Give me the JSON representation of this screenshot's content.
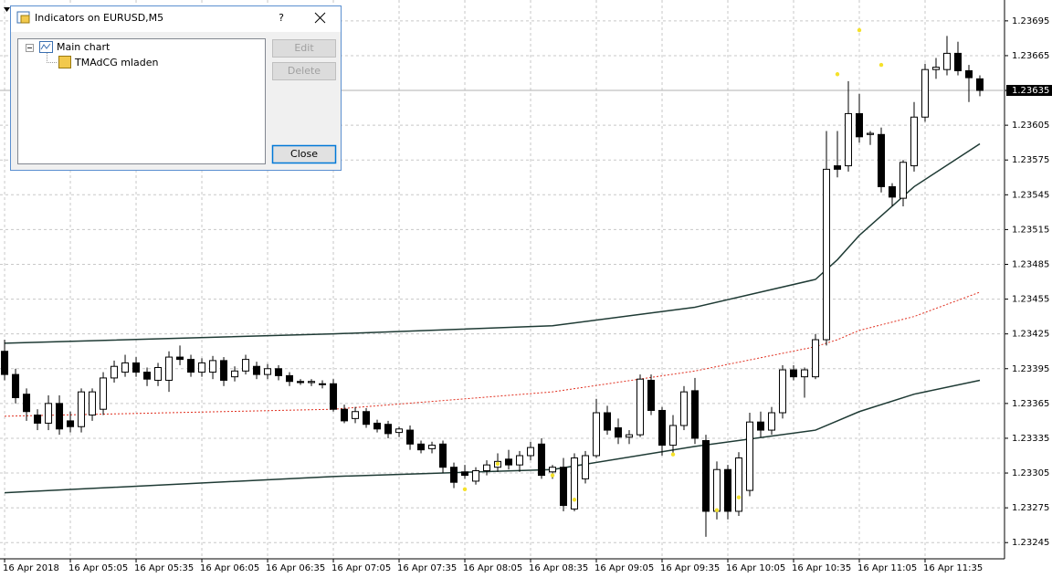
{
  "chart_data": {
    "type": "candlestick",
    "ylim": [
      1.23231,
      1.23713
    ],
    "yticks": [
      1.23695,
      1.23665,
      1.23635,
      1.23605,
      1.23575,
      1.23545,
      1.23515,
      1.23485,
      1.23455,
      1.23425,
      1.23395,
      1.23365,
      1.23335,
      1.23305,
      1.23275,
      1.23245
    ],
    "xlim": [
      -0.42,
      91.25
    ],
    "xticks": [
      {
        "value": 0,
        "label": "16 Apr 2018"
      },
      {
        "value": 6,
        "label": "16 Apr 05:05"
      },
      {
        "value": 12,
        "label": "16 Apr 05:35"
      },
      {
        "value": 18,
        "label": "16 Apr 06:05"
      },
      {
        "value": 24,
        "label": "16 Apr 06:35"
      },
      {
        "value": 30,
        "label": "16 Apr 07:05"
      },
      {
        "value": 36,
        "label": "16 Apr 07:35"
      },
      {
        "value": 42,
        "label": "16 Apr 08:05"
      },
      {
        "value": 48,
        "label": "16 Apr 08:35"
      },
      {
        "value": 54,
        "label": "16 Apr 09:05"
      },
      {
        "value": 60,
        "label": "16 Apr 09:35"
      },
      {
        "value": 66,
        "label": "16 Apr 10:05"
      },
      {
        "value": 72,
        "label": "16 Apr 10:35"
      },
      {
        "value": 78,
        "label": "16 Apr 11:05"
      },
      {
        "value": 84,
        "label": "16 Apr 11:35"
      }
    ],
    "grid": true,
    "current_price": 1.23635,
    "candles": [
      [
        1.2341,
        1.2342,
        1.23385,
        1.2339
      ],
      [
        1.2339,
        1.23395,
        1.23365,
        1.2337
      ],
      [
        1.23373,
        1.23378,
        1.2335,
        1.23358
      ],
      [
        1.23355,
        1.2336,
        1.23342,
        1.23348
      ],
      [
        1.23348,
        1.23372,
        1.23342,
        1.23365
      ],
      [
        1.23365,
        1.23372,
        1.23338,
        1.23343
      ],
      [
        1.2335,
        1.23358,
        1.2334,
        1.23345
      ],
      [
        1.23345,
        1.23378,
        1.2334,
        1.23375
      ],
      [
        1.23355,
        1.23378,
        1.2335,
        1.23375
      ],
      [
        1.2336,
        1.23392,
        1.23355,
        1.23387
      ],
      [
        1.23387,
        1.23402,
        1.23383,
        1.23397
      ],
      [
        1.23392,
        1.23407,
        1.23388,
        1.234
      ],
      [
        1.234,
        1.23405,
        1.23388,
        1.23392
      ],
      [
        1.23392,
        1.23396,
        1.2338,
        1.23386
      ],
      [
        1.23385,
        1.234,
        1.2338,
        1.23396
      ],
      [
        1.23385,
        1.2341,
        1.23375,
        1.23405
      ],
      [
        1.23405,
        1.23415,
        1.23398,
        1.23403
      ],
      [
        1.23403,
        1.23407,
        1.23388,
        1.23392
      ],
      [
        1.23392,
        1.23404,
        1.23388,
        1.234
      ],
      [
        1.23392,
        1.23406,
        1.23386,
        1.23402
      ],
      [
        1.23402,
        1.23405,
        1.2338,
        1.23385
      ],
      [
        1.23388,
        1.23397,
        1.23384,
        1.23393
      ],
      [
        1.23393,
        1.23407,
        1.2339,
        1.23403
      ],
      [
        1.23397,
        1.23401,
        1.23386,
        1.2339
      ],
      [
        1.2339,
        1.23399,
        1.23386,
        1.23395
      ],
      [
        1.23395,
        1.23398,
        1.23385,
        1.23389
      ],
      [
        1.23389,
        1.23392,
        1.2338,
        1.23384
      ],
      [
        1.23384,
        1.23386,
        1.23381,
        1.23383
      ],
      [
        1.23383,
        1.23386,
        1.2338,
        1.23384
      ],
      [
        1.23382,
        1.23385,
        1.23378,
        1.23382
      ],
      [
        1.23382,
        1.23386,
        1.23358,
        1.2336
      ],
      [
        1.2336,
        1.23364,
        1.23348,
        1.2335
      ],
      [
        1.23352,
        1.23362,
        1.23348,
        1.23358
      ],
      [
        1.23358,
        1.23361,
        1.23344,
        1.23347
      ],
      [
        1.23348,
        1.23351,
        1.2334,
        1.23343
      ],
      [
        1.23347,
        1.2335,
        1.23335,
        1.23339
      ],
      [
        1.2334,
        1.23345,
        1.23336,
        1.23343
      ],
      [
        1.23342,
        1.23346,
        1.23325,
        1.2333
      ],
      [
        1.2333,
        1.23333,
        1.23322,
        1.23325
      ],
      [
        1.23326,
        1.23332,
        1.23322,
        1.23329
      ],
      [
        1.2333,
        1.23333,
        1.23305,
        1.2331
      ],
      [
        1.2331,
        1.23314,
        1.23292,
        1.23297
      ],
      [
        1.23306,
        1.23312,
        1.233,
        1.23303
      ],
      [
        1.23298,
        1.2331,
        1.23295,
        1.23307
      ],
      [
        1.23307,
        1.23316,
        1.23303,
        1.23312
      ],
      [
        1.2331,
        1.23322,
        1.23306,
        1.23315
      ],
      [
        1.23317,
        1.23325,
        1.23308,
        1.23312
      ],
      [
        1.23312,
        1.23324,
        1.23306,
        1.2332
      ],
      [
        1.2332,
        1.23332,
        1.23316,
        1.23327
      ],
      [
        1.2333,
        1.23335,
        1.233,
        1.23303
      ],
      [
        1.23306,
        1.23312,
        1.233,
        1.2331
      ],
      [
        1.2331,
        1.23318,
        1.23272,
        1.23277
      ],
      [
        1.23274,
        1.23322,
        1.23272,
        1.23318
      ],
      [
        1.233,
        1.23324,
        1.23296,
        1.2332
      ],
      [
        1.2332,
        1.23369,
        1.23318,
        1.23357
      ],
      [
        1.23357,
        1.23363,
        1.23338,
        1.23342
      ],
      [
        1.23344,
        1.23352,
        1.2333,
        1.23336
      ],
      [
        1.23336,
        1.23342,
        1.2333,
        1.23338
      ],
      [
        1.23338,
        1.2339,
        1.23336,
        1.23386
      ],
      [
        1.23385,
        1.2339,
        1.23355,
        1.23359
      ],
      [
        1.23359,
        1.23362,
        1.2332,
        1.23329
      ],
      [
        1.23329,
        1.23355,
        1.23322,
        1.23346
      ],
      [
        1.23346,
        1.2338,
        1.23342,
        1.23375
      ],
      [
        1.23376,
        1.23387,
        1.2333,
        1.23335
      ],
      [
        1.23333,
        1.23338,
        1.2325,
        1.23272
      ],
      [
        1.23272,
        1.23315,
        1.23265,
        1.23308
      ],
      [
        1.23308,
        1.23312,
        1.23265,
        1.23272
      ],
      [
        1.23272,
        1.23323,
        1.23268,
        1.23318
      ],
      [
        1.2329,
        1.23357,
        1.23285,
        1.23349
      ],
      [
        1.23349,
        1.23358,
        1.23336,
        1.23342
      ],
      [
        1.23342,
        1.23362,
        1.23338,
        1.23357
      ],
      [
        1.23357,
        1.23398,
        1.23352,
        1.23394
      ],
      [
        1.23394,
        1.23398,
        1.23385,
        1.23388
      ],
      [
        1.23388,
        1.23396,
        1.2337,
        1.23394
      ],
      [
        1.23388,
        1.23425,
        1.23386,
        1.2342
      ],
      [
        1.2342,
        1.236,
        1.23415,
        1.23567
      ],
      [
        1.2357,
        1.236,
        1.2356,
        1.23567
      ],
      [
        1.2357,
        1.23643,
        1.23565,
        1.23615
      ],
      [
        1.23615,
        1.23632,
        1.2359,
        1.23595
      ],
      [
        1.23597,
        1.236,
        1.23588,
        1.23598
      ],
      [
        1.23597,
        1.23603,
        1.23547,
        1.23552
      ],
      [
        1.23552,
        1.23555,
        1.23535,
        1.23543
      ],
      [
        1.23542,
        1.23575,
        1.23535,
        1.23573
      ],
      [
        1.2357,
        1.23625,
        1.23565,
        1.23612
      ],
      [
        1.23612,
        1.23658,
        1.23608,
        1.23653
      ],
      [
        1.23653,
        1.23663,
        1.23645,
        1.23655
      ],
      [
        1.23653,
        1.23682,
        1.23648,
        1.23667
      ],
      [
        1.23667,
        1.23677,
        1.23648,
        1.23652
      ],
      [
        1.23652,
        1.23657,
        1.23625,
        1.23646
      ],
      [
        1.23645,
        1.23648,
        1.2363,
        1.23635
      ]
    ],
    "bands": {
      "x": [
        0,
        30,
        50,
        63,
        74,
        76,
        78,
        83,
        89
      ],
      "series": [
        {
          "color": "#1e3a34",
          "style": "solid",
          "values": [
            1.23417,
            1.23425,
            1.23432,
            1.23448,
            1.23472,
            1.23489,
            1.2351,
            1.23552,
            1.23589
          ]
        },
        {
          "color": "#e03020",
          "style": "dotted",
          "values": [
            1.23354,
            1.2336,
            1.23375,
            1.23393,
            1.23414,
            1.2342,
            1.23428,
            1.2344,
            1.23461
          ]
        },
        {
          "color": "#1e3a34",
          "style": "solid",
          "values": [
            1.23288,
            1.23302,
            1.23308,
            1.23328,
            1.23342,
            1.2335,
            1.23358,
            1.23373,
            1.23385
          ]
        }
      ]
    },
    "signals": {
      "color": "#f5e12a",
      "x": [
        42,
        45,
        50,
        52,
        61,
        65,
        67,
        76,
        78,
        80
      ],
      "values": [
        1.23291,
        1.23313,
        1.23303,
        1.23282,
        1.23321,
        1.23273,
        1.23284,
        1.23649,
        1.23687,
        1.23657
      ]
    }
  },
  "dialog": {
    "title": "Indicators on EURUSD,M5",
    "help": "?",
    "tree": [
      "Main chart",
      "TMAdCG mladen"
    ],
    "buttons": [
      "Edit",
      "Delete",
      "Close"
    ]
  }
}
